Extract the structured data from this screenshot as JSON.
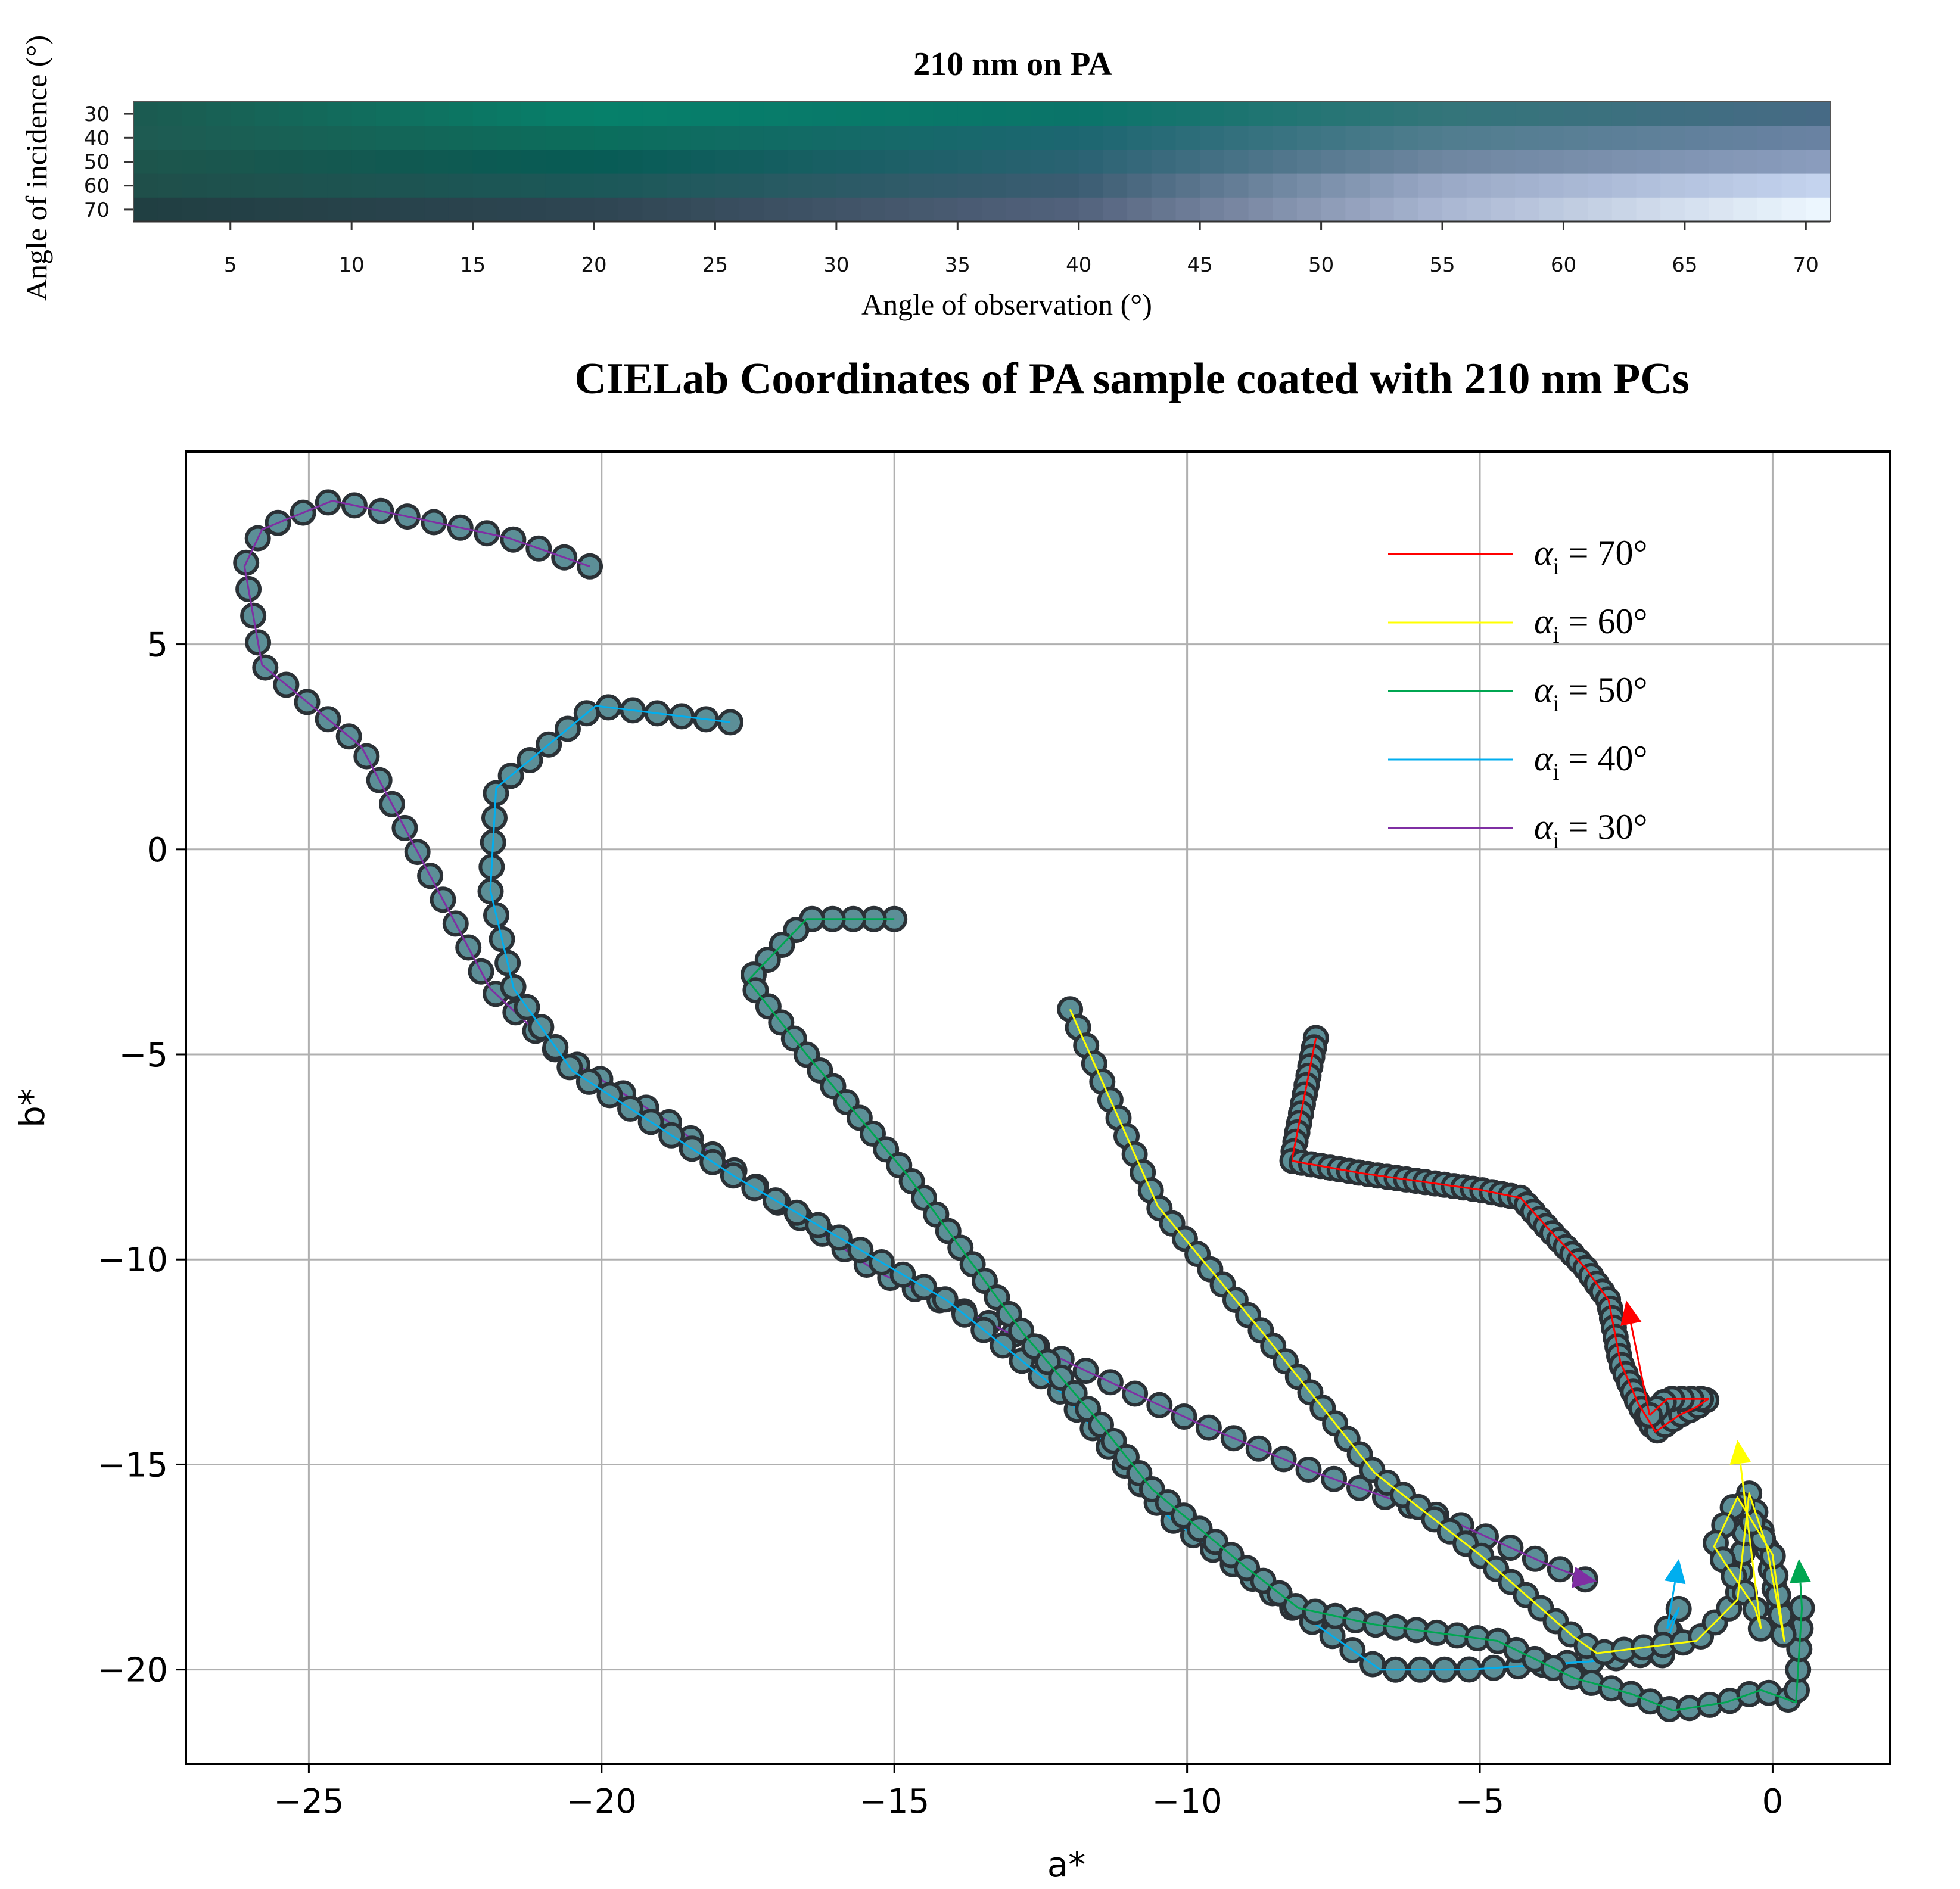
{
  "chart_data": [
    {
      "type": "heatmap",
      "title": "210 nm on PA",
      "xlabel": "Angle of observation (°)",
      "ylabel": "Angle of incidence (°)",
      "row_labels": [
        "30",
        "40",
        "50",
        "60",
        "70"
      ],
      "x_ticks": [
        5,
        10,
        15,
        20,
        25,
        30,
        35,
        40,
        45,
        50,
        55,
        60,
        65,
        70
      ],
      "x_range": [
        1,
        71
      ],
      "rows": [
        {
          "label": "30",
          "stops": [
            {
              "x": 1,
              "color": "#1c5a50"
            },
            {
              "x": 20,
              "color": "#06806a"
            },
            {
              "x": 40,
              "color": "#0a7469"
            },
            {
              "x": 55,
              "color": "#33757a"
            },
            {
              "x": 71,
              "color": "#476a85"
            }
          ]
        },
        {
          "label": "40",
          "stops": [
            {
              "x": 1,
              "color": "#1f5a52"
            },
            {
              "x": 20,
              "color": "#0b6e5c"
            },
            {
              "x": 40,
              "color": "#1c6670"
            },
            {
              "x": 55,
              "color": "#507d8e"
            },
            {
              "x": 71,
              "color": "#6a82a3"
            }
          ]
        },
        {
          "label": "50",
          "stops": [
            {
              "x": 1,
              "color": "#1e554c"
            },
            {
              "x": 20,
              "color": "#075c55"
            },
            {
              "x": 40,
              "color": "#2a6272"
            },
            {
              "x": 55,
              "color": "#6e86a0"
            },
            {
              "x": 71,
              "color": "#8b9dbe"
            }
          ]
        },
        {
          "label": "60",
          "stops": [
            {
              "x": 1,
              "color": "#1f4f4a"
            },
            {
              "x": 20,
              "color": "#1b5858"
            },
            {
              "x": 40,
              "color": "#3b5c72"
            },
            {
              "x": 55,
              "color": "#9aa9c6"
            },
            {
              "x": 71,
              "color": "#c5d4ef"
            }
          ]
        },
        {
          "label": "70",
          "stops": [
            {
              "x": 1,
              "color": "#203f42"
            },
            {
              "x": 20,
              "color": "#2e4552"
            },
            {
              "x": 40,
              "color": "#52627c"
            },
            {
              "x": 55,
              "color": "#a9b6d2"
            },
            {
              "x": 71,
              "color": "#eef8ff"
            }
          ]
        }
      ]
    },
    {
      "type": "line",
      "title": "CIELab Coordinates of PA sample coated with 210 nm PCs",
      "xlabel": "a*",
      "ylabel": "b*",
      "xlim": [
        -27.1,
        2.0
      ],
      "ylim": [
        -22.3,
        9.7
      ],
      "x_ticks": [
        -25,
        -20,
        -15,
        -10,
        -5,
        0
      ],
      "y_ticks": [
        5,
        0,
        -5,
        -10,
        -15,
        -20
      ],
      "x_tick_labels": [
        "−25",
        "−20",
        "−15",
        "−10",
        "−5",
        "0"
      ],
      "y_tick_labels": [
        "5",
        "0",
        "−5",
        "−10",
        "−15",
        "−20"
      ],
      "grid": true,
      "legend_position": "top-right",
      "marker_fill": "#5c8f97",
      "marker_edge": "#2b3136",
      "series": [
        {
          "name": "αi = 70°",
          "legend_main": "α",
          "legend_sub": "i",
          "legend_value": " = 70°",
          "color": "#ff0000",
          "x": [
            -7.8,
            -8.2,
            -8.2,
            -7.0,
            -6.0,
            -5.0,
            -4.3,
            -3.8,
            -3.2,
            -2.8,
            -2.6,
            -2.3,
            -2.0,
            -1.6,
            -1.3,
            -1.1,
            -1.8,
            -2.1
          ],
          "y": [
            -4.6,
            -7.5,
            -7.6,
            -7.9,
            -8.1,
            -8.3,
            -8.5,
            -9.3,
            -10.2,
            -11.0,
            -12.5,
            -13.5,
            -14.2,
            -13.8,
            -13.6,
            -13.4,
            -13.4,
            -13.8
          ],
          "n_markers": 80,
          "arrow_tip": [
            -2.5,
            -11.0
          ]
        },
        {
          "name": "αi = 60°",
          "legend_main": "α",
          "legend_sub": "i",
          "legend_value": " = 60°",
          "color": "#ffff00",
          "x": [
            -12.0,
            -10.5,
            -8.7,
            -6.8,
            -5.0,
            -3.4,
            -3.0,
            -1.3,
            -0.6,
            -0.4,
            -0.1,
            0.2,
            0.0,
            -0.6,
            -1.0,
            -0.3,
            -0.2
          ],
          "y": [
            -3.9,
            -8.7,
            -11.8,
            -15.2,
            -17.2,
            -19.2,
            -19.6,
            -19.3,
            -18.3,
            -15.7,
            -17.0,
            -19.3,
            -17.2,
            -15.8,
            -17.0,
            -18.5,
            -19.0
          ],
          "n_markers": 80,
          "arrow_tip": [
            -0.6,
            -14.4
          ]
        },
        {
          "name": "αi = 50°",
          "legend_main": "α",
          "legend_sub": "i",
          "legend_value": " = 50°",
          "color": "#00a651",
          "x": [
            -15.0,
            -16.5,
            -17.5,
            -16.5,
            -14.8,
            -12.8,
            -11.6,
            -10.6,
            -9.0,
            -8.1,
            -6.8,
            -4.7,
            -3.4,
            -2.4,
            -1.7,
            -0.8,
            -0.2,
            0.4,
            0.5
          ],
          "y": [
            -1.7,
            -1.7,
            -3.2,
            -5.0,
            -7.9,
            -11.8,
            -13.8,
            -15.6,
            -17.5,
            -18.5,
            -18.9,
            -19.3,
            -20.2,
            -20.6,
            -21.0,
            -20.8,
            -20.5,
            -20.8,
            -18.5
          ],
          "n_markers": 80,
          "arrow_tip": [
            0.45,
            -17.3
          ]
        },
        {
          "name": "αi = 40°",
          "legend_main": "α",
          "legend_sub": "i",
          "legend_value": " = 40°",
          "color": "#00aeef",
          "x": [
            -17.8,
            -20.1,
            -21.8,
            -21.9,
            -21.5,
            -20.5,
            -17.7,
            -14.1,
            -12.1,
            -10.3,
            -8.1,
            -6.7,
            -5.2,
            -3.1,
            -2.0,
            -1.9,
            -1.6,
            -1.8
          ],
          "y": [
            3.1,
            3.5,
            1.5,
            -1.0,
            -3.4,
            -5.4,
            -8.0,
            -11.0,
            -13.3,
            -16.3,
            -18.6,
            -20.0,
            -20.0,
            -19.8,
            -19.6,
            -19.7,
            -18.5,
            -19.0
          ],
          "n_markers": 80,
          "arrow_tip": [
            -1.6,
            -17.3
          ]
        },
        {
          "name": "αi = 30°",
          "legend_main": "α",
          "legend_sub": "i",
          "legend_value": " = 30°",
          "color": "#7f2fa3",
          "x": [
            -20.2,
            -21.6,
            -24.6,
            -25.8,
            -26.1,
            -25.8,
            -24.1,
            -21.9,
            -20.7,
            -18.9,
            -17.1,
            -15.3,
            -13.6,
            -11.9,
            -9.8,
            -7.8,
            -5.6,
            -3.9,
            -3.2
          ],
          "y": [
            6.9,
            7.6,
            8.5,
            7.8,
            6.9,
            4.5,
            2.5,
            -3.4,
            -5.0,
            -6.6,
            -8.5,
            -10.3,
            -11.4,
            -12.6,
            -14.0,
            -15.2,
            -16.3,
            -17.4,
            -17.8
          ],
          "n_markers": 80,
          "arrow_tip": [
            -3.0,
            -17.85
          ]
        }
      ]
    }
  ]
}
